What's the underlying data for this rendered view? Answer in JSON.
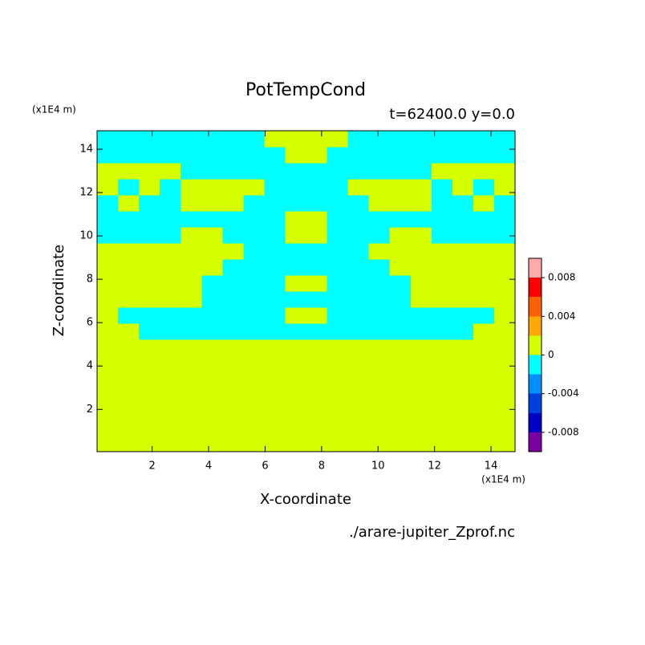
{
  "chart_data": {
    "type": "contour",
    "title": "PotTempCond",
    "subtitle": "t=62400.0 y=0.0",
    "x_label": "X-coordinate",
    "y_label": "Z-coordinate",
    "x_unit": "(x1E4 m)",
    "y_unit": "(x1E4 m)",
    "source": "./arare-jupiter_Zprof.nc",
    "xlim": [
      0.05,
      14.85
    ],
    "ylim": [
      0.05,
      14.85
    ],
    "xticks": [
      2,
      4,
      6,
      8,
      10,
      12,
      14
    ],
    "yticks": [
      2,
      4,
      6,
      8,
      10,
      12,
      14
    ],
    "levels": [
      -0.01,
      -0.008,
      -0.006,
      -0.004,
      -0.002,
      0,
      0.002,
      0.004,
      0.006,
      0.008,
      0.01
    ],
    "colors": [
      "#7a00a0",
      "#0000c8",
      "#0040e0",
      "#0090ff",
      "#00ffff",
      "#d6ff00",
      "#ffa800",
      "#ff6000",
      "#ff0000",
      "#ffaaaa"
    ],
    "colorbar_ticks": [
      -0.008,
      -0.004,
      0,
      0.004,
      0.008
    ],
    "z": [
      [
        0.001,
        0.001,
        0.001,
        0.001,
        0.001,
        0.001,
        0.001,
        0.001,
        0.001,
        0.001,
        0.001,
        0.001,
        0.001,
        0.001,
        0.001,
        0.001,
        0.001,
        0.001,
        0.001,
        0.001
      ],
      [
        0.001,
        0.001,
        0.001,
        0.001,
        0.001,
        0.001,
        0.001,
        0.001,
        0.001,
        0.001,
        0.001,
        0.001,
        0.001,
        0.001,
        0.001,
        0.001,
        0.001,
        0.001,
        0.001,
        0.001
      ],
      [
        0.001,
        0.001,
        0.001,
        0.001,
        0.001,
        0.001,
        0.001,
        0.001,
        0.001,
        0.001,
        0.001,
        0.001,
        0.001,
        0.001,
        0.001,
        0.001,
        0.001,
        0.001,
        0.001,
        0.001
      ],
      [
        0.001,
        0.001,
        0.001,
        0.001,
        0.001,
        0.001,
        0.001,
        0.001,
        0.001,
        0.001,
        0.001,
        0.001,
        0.001,
        0.001,
        0.001,
        0.001,
        0.001,
        0.001,
        0.001,
        0.001
      ],
      [
        0.001,
        0.001,
        0.001,
        0.001,
        0.001,
        0.001,
        0.001,
        0.001,
        0.001,
        0.001,
        0.001,
        0.001,
        0.001,
        0.001,
        0.001,
        0.001,
        0.001,
        0.001,
        0.001,
        0.001
      ],
      [
        0.001,
        0.001,
        0.001,
        0.001,
        0.001,
        0.001,
        0.001,
        0.001,
        0.001,
        0.001,
        0.001,
        0.001,
        0.001,
        0.001,
        0.001,
        0.001,
        0.001,
        0.001,
        0.001,
        0.001
      ],
      [
        0.001,
        0.001,
        0.001,
        0.001,
        0.001,
        0.001,
        0.001,
        0.001,
        0.001,
        0.001,
        0.001,
        0.001,
        0.001,
        0.001,
        0.001,
        0.001,
        0.001,
        0.001,
        0.001,
        0.001
      ],
      [
        0.001,
        0.001,
        -0.001,
        -0.001,
        -0.001,
        -0.001,
        -0.001,
        -0.001,
        -0.001,
        -0.001,
        -0.001,
        -0.001,
        -0.001,
        -0.001,
        -0.001,
        -0.001,
        -0.001,
        -0.001,
        0.001,
        0.001
      ],
      [
        0.001,
        -0.001,
        -0.001,
        -0.001,
        -0.001,
        -0.001,
        -0.001,
        -0.001,
        -0.001,
        0.001,
        0.001,
        -0.001,
        -0.001,
        -0.001,
        -0.001,
        -0.001,
        -0.001,
        -0.001,
        -0.001,
        0.001
      ],
      [
        0.001,
        0.001,
        0.001,
        0.001,
        0.001,
        -0.001,
        -0.001,
        -0.001,
        -0.001,
        -0.001,
        -0.001,
        -0.001,
        -0.001,
        -0.001,
        -0.001,
        0.001,
        0.001,
        0.001,
        0.001,
        0.001
      ],
      [
        0.001,
        0.001,
        0.001,
        0.001,
        0.001,
        -0.001,
        -0.001,
        -0.001,
        -0.001,
        0.001,
        0.001,
        -0.001,
        -0.001,
        -0.001,
        -0.001,
        0.001,
        0.001,
        0.001,
        0.001,
        0.001
      ],
      [
        0.001,
        0.001,
        0.001,
        0.001,
        0.001,
        0.001,
        -0.001,
        -0.001,
        -0.001,
        -0.001,
        -0.001,
        -0.001,
        -0.001,
        -0.001,
        0.001,
        0.001,
        0.001,
        0.001,
        0.001,
        0.001
      ],
      [
        0.001,
        0.001,
        0.001,
        0.001,
        0.001,
        0.001,
        0.001,
        -0.001,
        -0.001,
        -0.001,
        -0.001,
        -0.001,
        -0.001,
        0.001,
        0.001,
        0.001,
        0.001,
        0.001,
        0.001,
        0.001
      ],
      [
        -0.001,
        -0.001,
        -0.001,
        -0.001,
        0.001,
        0.001,
        -0.001,
        -0.001,
        -0.001,
        0.001,
        0.001,
        -0.001,
        -0.001,
        -0.001,
        0.001,
        0.001,
        -0.001,
        -0.001,
        -0.001,
        -0.001
      ],
      [
        -0.001,
        -0.001,
        -0.001,
        -0.001,
        -0.001,
        -0.001,
        -0.001,
        -0.001,
        -0.001,
        0.001,
        0.001,
        -0.001,
        -0.001,
        -0.001,
        -0.001,
        -0.001,
        -0.001,
        -0.001,
        -0.001,
        -0.001
      ],
      [
        -0.001,
        0.001,
        -0.001,
        -0.001,
        0.001,
        0.001,
        0.001,
        -0.001,
        -0.001,
        -0.001,
        -0.001,
        -0.001,
        -0.001,
        0.001,
        0.001,
        0.001,
        -0.001,
        -0.001,
        0.001,
        -0.001
      ],
      [
        0.001,
        -0.001,
        0.001,
        -0.001,
        0.001,
        0.001,
        0.001,
        0.001,
        -0.001,
        -0.001,
        -0.001,
        -0.001,
        0.001,
        0.001,
        0.001,
        0.001,
        -0.001,
        0.001,
        -0.001,
        0.001
      ],
      [
        0.001,
        0.001,
        0.001,
        0.001,
        -0.001,
        -0.001,
        -0.001,
        -0.001,
        -0.001,
        -0.001,
        -0.001,
        -0.001,
        -0.001,
        -0.001,
        -0.001,
        -0.001,
        0.001,
        0.001,
        0.001,
        0.001
      ],
      [
        -0.001,
        -0.001,
        -0.001,
        -0.001,
        -0.001,
        -0.001,
        -0.001,
        -0.001,
        -0.001,
        0.001,
        0.001,
        -0.001,
        -0.001,
        -0.001,
        -0.001,
        -0.001,
        -0.001,
        -0.001,
        -0.001,
        -0.001
      ],
      [
        -0.001,
        -0.001,
        -0.001,
        -0.001,
        -0.001,
        -0.001,
        -0.001,
        -0.001,
        0.001,
        0.001,
        0.001,
        0.001,
        -0.001,
        -0.001,
        -0.001,
        -0.001,
        -0.001,
        -0.001,
        -0.001,
        -0.001
      ]
    ]
  }
}
